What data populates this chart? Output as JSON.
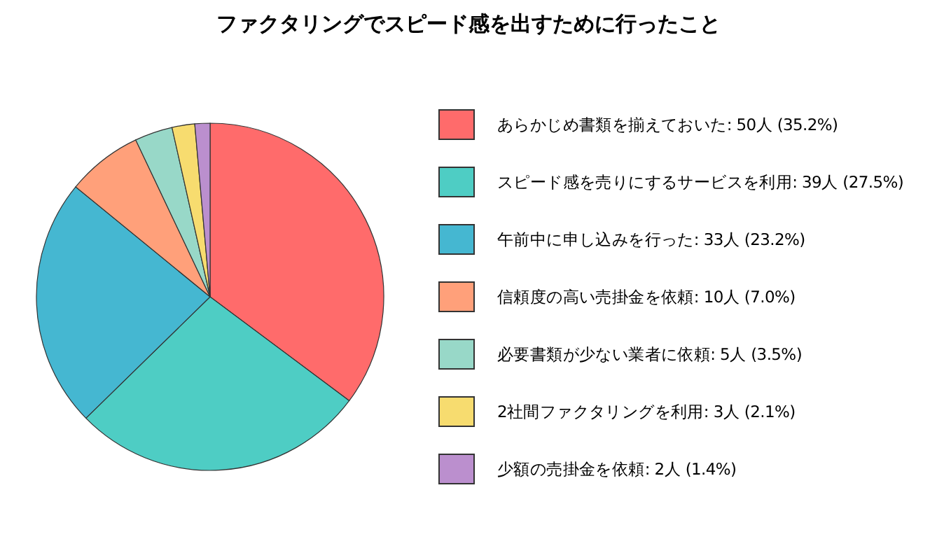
{
  "chart_data": {
    "type": "pie",
    "title": "ファクタリングでスピード感を出すために行ったこと",
    "categories": [
      "あらかじめ書類を揃えておいた",
      "スピード感を売りにするサービスを利用",
      "午前中に申し込みを行った",
      "信頼度の高い売掛金を依頼",
      "必要書類が少ない業者に依頼",
      "2社間ファクタリングを利用",
      "少額の売掛金を依頼"
    ],
    "values": [
      50,
      39,
      33,
      10,
      5,
      3,
      2
    ],
    "value_labels": [
      ": 50人 (35.2%)",
      ": 39人 (27.5%)",
      ": 33人 (23.2%)",
      ": 10人 (7.0%)",
      ": 5人 (3.5%)",
      ": 3人 (2.1%)",
      ": 2人 (1.4%)"
    ],
    "colors": [
      "#ff6b6b",
      "#4ecdc4",
      "#45b7d1",
      "#ffa07a",
      "#98d8c8",
      "#f7dc6f",
      "#bb8fce"
    ],
    "legend": "right"
  }
}
